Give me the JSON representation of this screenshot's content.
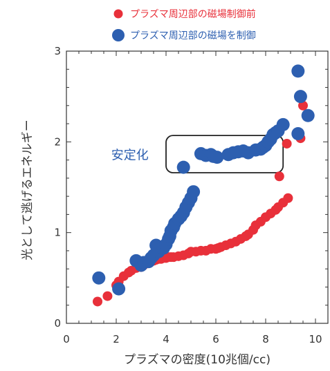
{
  "chart_data": {
    "type": "scatter",
    "title": "",
    "xlabel": "プラズマの密度(10兆個/cc)",
    "ylabel": "光として逃げるエネルギー",
    "xlim": [
      0,
      10.5
    ],
    "ylim": [
      0,
      3
    ],
    "xticks": [
      0,
      2,
      4,
      6,
      8,
      10
    ],
    "yticks": [
      0,
      1,
      2,
      3
    ],
    "x_minor_step": 0.5,
    "y_minor_step": 0.2,
    "grid": false,
    "legend_position": "top",
    "series": [
      {
        "name": "プラズマ周辺部の磁場制御前",
        "color": "#e8303a",
        "marker_size": "small",
        "points": [
          [
            1.25,
            0.24
          ],
          [
            1.65,
            0.3
          ],
          [
            2.0,
            0.42
          ],
          [
            2.1,
            0.46
          ],
          [
            2.3,
            0.52
          ],
          [
            2.5,
            0.56
          ],
          [
            2.6,
            0.58
          ],
          [
            2.8,
            0.61
          ],
          [
            2.9,
            0.63
          ],
          [
            3.0,
            0.62
          ],
          [
            3.1,
            0.64
          ],
          [
            3.2,
            0.66
          ],
          [
            3.3,
            0.67
          ],
          [
            3.4,
            0.68
          ],
          [
            3.5,
            0.69
          ],
          [
            3.6,
            0.7
          ],
          [
            3.7,
            0.71
          ],
          [
            3.8,
            0.71
          ],
          [
            3.9,
            0.72
          ],
          [
            4.0,
            0.72
          ],
          [
            4.1,
            0.73
          ],
          [
            4.2,
            0.73
          ],
          [
            4.3,
            0.73
          ],
          [
            4.5,
            0.74
          ],
          [
            4.7,
            0.75
          ],
          [
            4.9,
            0.77
          ],
          [
            5.0,
            0.79
          ],
          [
            5.2,
            0.79
          ],
          [
            5.4,
            0.8
          ],
          [
            5.6,
            0.8
          ],
          [
            5.8,
            0.82
          ],
          [
            6.0,
            0.82
          ],
          [
            6.1,
            0.83
          ],
          [
            6.2,
            0.84
          ],
          [
            6.4,
            0.86
          ],
          [
            6.6,
            0.88
          ],
          [
            6.8,
            0.9
          ],
          [
            7.0,
            0.93
          ],
          [
            7.2,
            0.96
          ],
          [
            7.3,
            0.98
          ],
          [
            7.5,
            1.03
          ],
          [
            7.6,
            1.08
          ],
          [
            7.8,
            1.12
          ],
          [
            8.0,
            1.17
          ],
          [
            8.2,
            1.21
          ],
          [
            8.4,
            1.25
          ],
          [
            8.5,
            1.28
          ],
          [
            8.7,
            1.33
          ],
          [
            8.9,
            1.38
          ],
          [
            8.55,
            1.62
          ],
          [
            8.85,
            1.98
          ],
          [
            9.4,
            2.04
          ],
          [
            9.5,
            2.4
          ]
        ]
      },
      {
        "name": "プラズマ周辺部の磁場を制御",
        "color": "#2d5fb0",
        "marker_size": "large",
        "points": [
          [
            1.3,
            0.5
          ],
          [
            2.1,
            0.38
          ],
          [
            2.8,
            0.69
          ],
          [
            3.0,
            0.64
          ],
          [
            3.1,
            0.67
          ],
          [
            3.3,
            0.68
          ],
          [
            3.4,
            0.72
          ],
          [
            3.5,
            0.75
          ],
          [
            3.6,
            0.86
          ],
          [
            3.7,
            0.79
          ],
          [
            3.8,
            0.84
          ],
          [
            3.9,
            0.83
          ],
          [
            4.0,
            0.87
          ],
          [
            4.1,
            0.93
          ],
          [
            4.15,
            0.96
          ],
          [
            4.2,
            1.02
          ],
          [
            4.3,
            1.06
          ],
          [
            4.35,
            1.1
          ],
          [
            4.5,
            1.15
          ],
          [
            4.6,
            1.18
          ],
          [
            4.7,
            1.22
          ],
          [
            4.8,
            1.28
          ],
          [
            4.9,
            1.33
          ],
          [
            5.0,
            1.38
          ],
          [
            5.1,
            1.45
          ],
          [
            4.7,
            1.72
          ],
          [
            5.4,
            1.87
          ],
          [
            5.6,
            1.85
          ],
          [
            5.8,
            1.86
          ],
          [
            5.9,
            1.84
          ],
          [
            6.05,
            1.83
          ],
          [
            6.5,
            1.86
          ],
          [
            6.7,
            1.88
          ],
          [
            6.9,
            1.89
          ],
          [
            7.1,
            1.9
          ],
          [
            7.3,
            1.88
          ],
          [
            7.6,
            1.91
          ],
          [
            7.8,
            1.92
          ],
          [
            7.9,
            1.94
          ],
          [
            8.0,
            1.96
          ],
          [
            8.1,
            2.0
          ],
          [
            8.2,
            2.03
          ],
          [
            8.3,
            2.08
          ],
          [
            8.4,
            2.1
          ],
          [
            8.5,
            2.12
          ],
          [
            8.7,
            2.19
          ],
          [
            9.3,
            2.09
          ],
          [
            9.3,
            2.78
          ],
          [
            9.4,
            2.5
          ],
          [
            9.7,
            2.29
          ]
        ]
      }
    ],
    "annotations": [
      {
        "text": "安定化",
        "anchor_x": 2.55,
        "anchor_y": 1.86,
        "box": {
          "x0": 4.0,
          "x1": 8.7,
          "y0": 1.66,
          "y1": 2.07
        },
        "color": "#2d5fb0"
      }
    ]
  }
}
